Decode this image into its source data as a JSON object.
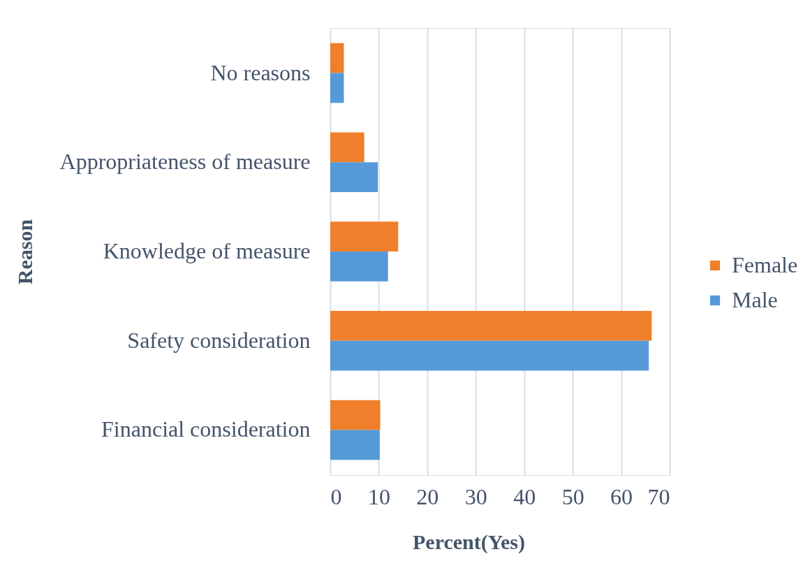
{
  "chart_data": {
    "type": "bar",
    "orientation": "horizontal",
    "xlabel": "Percent(Yes)",
    "ylabel": "Reason",
    "categories": [
      "No reasons",
      "Appropriateness of measure",
      "Knowledge of measure",
      "Safety consideration",
      "Financial consideration"
    ],
    "series": [
      {
        "name": "Female",
        "color": "#f07f2b",
        "values": [
          2.8,
          7.0,
          14.0,
          66.3,
          10.3
        ]
      },
      {
        "name": "Male",
        "color": "#5599d8",
        "values": [
          2.8,
          9.8,
          11.9,
          65.7,
          10.2
        ]
      }
    ],
    "xlim": [
      0,
      70
    ],
    "xticks": [
      0,
      10,
      20,
      30,
      40,
      50,
      60,
      70
    ],
    "grid": "x",
    "legend": "right"
  }
}
